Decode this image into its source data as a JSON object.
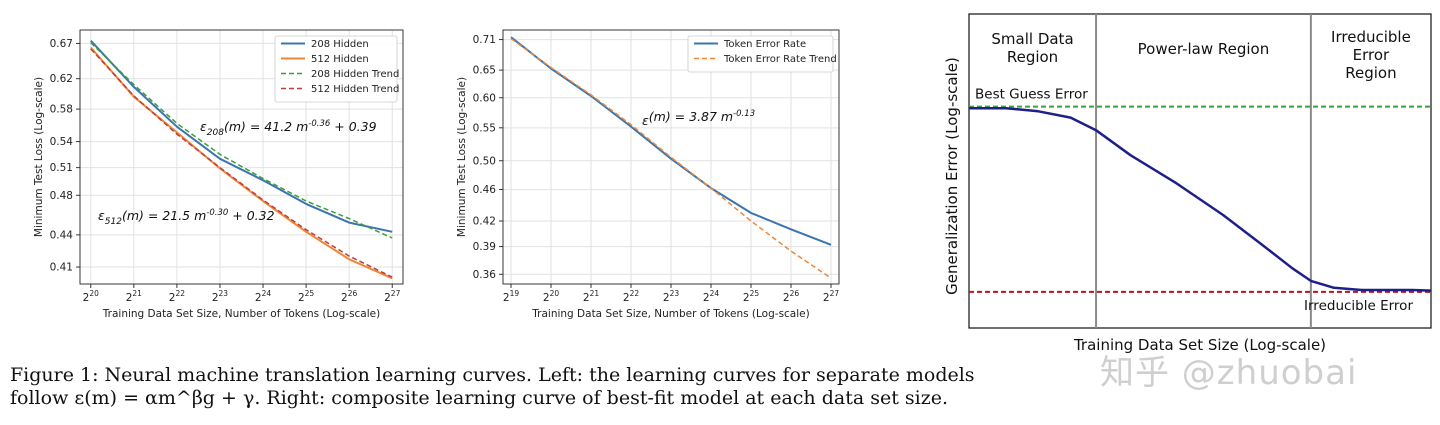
{
  "chart_data": [
    {
      "type": "line",
      "xscale": "log2",
      "yscale": "log",
      "xlabel": "Training Data Set Size, Number of Tokens (Log-scale)",
      "ylabel": "Minimum Test Loss (Log-scale)",
      "xtick_exponents": [
        20,
        21,
        22,
        23,
        24,
        25,
        26,
        27
      ],
      "ytick_labels": [
        "0.67",
        "0.62",
        "0.58",
        "0.54",
        "0.51",
        "0.48",
        "0.44",
        "0.41"
      ],
      "xlim_exp": [
        19.75,
        27.25
      ],
      "ylim": [
        0.395,
        0.69
      ],
      "grid": true,
      "legend_position": "upper right",
      "series": [
        {
          "name": "208 Hidden",
          "style": "solid",
          "color": "#3b75af",
          "x_exp": [
            20,
            21,
            22,
            23,
            24,
            25,
            26,
            27
          ],
          "y": [
            0.674,
            0.609,
            0.558,
            0.52,
            0.496,
            0.471,
            0.452,
            0.443
          ]
        },
        {
          "name": "512 Hidden",
          "style": "solid",
          "color": "#ef8636",
          "x_exp": [
            20,
            21,
            22,
            23,
            24,
            25,
            26,
            27
          ],
          "y": [
            0.664,
            0.596,
            0.551,
            0.509,
            0.474,
            0.443,
            0.417,
            0.4
          ]
        },
        {
          "name": "208 Hidden Trend",
          "style": "dashed",
          "color": "#3a9e3a",
          "x_exp": [
            20,
            21,
            22,
            23,
            24,
            25,
            26,
            27
          ],
          "y": [
            0.671,
            0.612,
            0.562,
            0.525,
            0.498,
            0.474,
            0.456,
            0.437
          ]
        },
        {
          "name": "512 Hidden Trend",
          "style": "dashed",
          "color": "#c03d3e",
          "x_exp": [
            20,
            21,
            22,
            23,
            24,
            25,
            26,
            27
          ],
          "y": [
            0.662,
            0.597,
            0.549,
            0.51,
            0.475,
            0.445,
            0.42,
            0.401
          ]
        }
      ],
      "annotations": [
        {
          "base": "ε",
          "sub": "208",
          "rest": "(m) = 41.2 m",
          "sup": "-0.36",
          "tail": " + 0.39"
        },
        {
          "base": "ε",
          "sub": "512",
          "rest": "(m) = 21.5 m",
          "sup": "-0.30",
          "tail": " + 0.32"
        }
      ]
    },
    {
      "type": "line",
      "xscale": "log2",
      "yscale": "log",
      "xlabel": "Training Data Set Size, Number of Tokens (Log-scale)",
      "ylabel": "Minimum Test Loss (Log-scale)",
      "xtick_exponents": [
        19,
        20,
        21,
        22,
        23,
        24,
        25,
        26,
        27
      ],
      "ytick_labels": [
        "0.71",
        "0.65",
        "0.60",
        "0.55",
        "0.50",
        "0.46",
        "0.42",
        "0.39",
        "0.36"
      ],
      "xlim_exp": [
        18.8,
        27.2
      ],
      "ylim": [
        0.35,
        0.73
      ],
      "grid": true,
      "legend_position": "upper right",
      "series": [
        {
          "name": "Token Error Rate",
          "style": "solid",
          "color": "#3b75af",
          "x_exp": [
            19,
            20,
            21,
            22,
            23,
            24,
            25,
            26,
            27
          ],
          "y": [
            0.715,
            0.653,
            0.603,
            0.552,
            0.503,
            0.462,
            0.43,
            0.41,
            0.392
          ]
        },
        {
          "name": "Token Error Rate Trend",
          "style": "dashed",
          "color": "#ef8636",
          "x_exp": [
            19,
            20,
            21,
            22,
            23,
            24,
            25,
            26,
            27
          ],
          "y": [
            0.712,
            0.655,
            0.605,
            0.555,
            0.505,
            0.462,
            0.42,
            0.385,
            0.356
          ]
        }
      ],
      "annotations": [
        {
          "base": "ε",
          "sub": "",
          "rest": "(m) = 3.87 m",
          "sup": "-0.13",
          "tail": ""
        }
      ]
    },
    {
      "type": "line",
      "xlabel": "Training Data Set Size (Log-scale)",
      "ylabel": "Generalization Error (Log-scale)",
      "x_ticks": "none",
      "y_ticks": "none",
      "xlim": [
        0,
        100
      ],
      "ylim": [
        0,
        100
      ],
      "regions": [
        {
          "label": [
            "Small Data",
            "Region"
          ],
          "x_range": [
            0,
            27.5
          ]
        },
        {
          "label": [
            "Power-law Region"
          ],
          "x_range": [
            27.5,
            74
          ]
        },
        {
          "label": [
            "Irreducible",
            "Error",
            "Region"
          ],
          "x_range": [
            74,
            100
          ]
        }
      ],
      "dividers_x": [
        27.5,
        74
      ],
      "hlines": [
        {
          "label": "Best Guess Error",
          "y": 70.5,
          "color": "#3aa33a",
          "style": "dashed"
        },
        {
          "label": "Irreducible Error",
          "y": 11.5,
          "color": "#c3101f",
          "style": "dashed"
        }
      ],
      "series": [
        {
          "name": "",
          "color": "#1f1f8a",
          "style": "solid",
          "x": [
            0,
            8,
            15,
            22,
            27.5,
            35,
            45,
            55,
            63,
            70,
            74,
            79,
            85,
            90,
            96,
            100
          ],
          "y": [
            70,
            70,
            69,
            67,
            63,
            55,
            46,
            36,
            27,
            19,
            15,
            12.8,
            12.1,
            12.1,
            12.1,
            11.9
          ]
        }
      ]
    }
  ],
  "caption": {
    "line1": "Figure 1: Neural machine translation learning curves. Left: the learning curves for separate models",
    "line2": "follow ε(m) = αm^βg + γ. Right: composite learning curve of best-fit model at each data set size."
  },
  "watermark": "知乎 @zhuobai"
}
